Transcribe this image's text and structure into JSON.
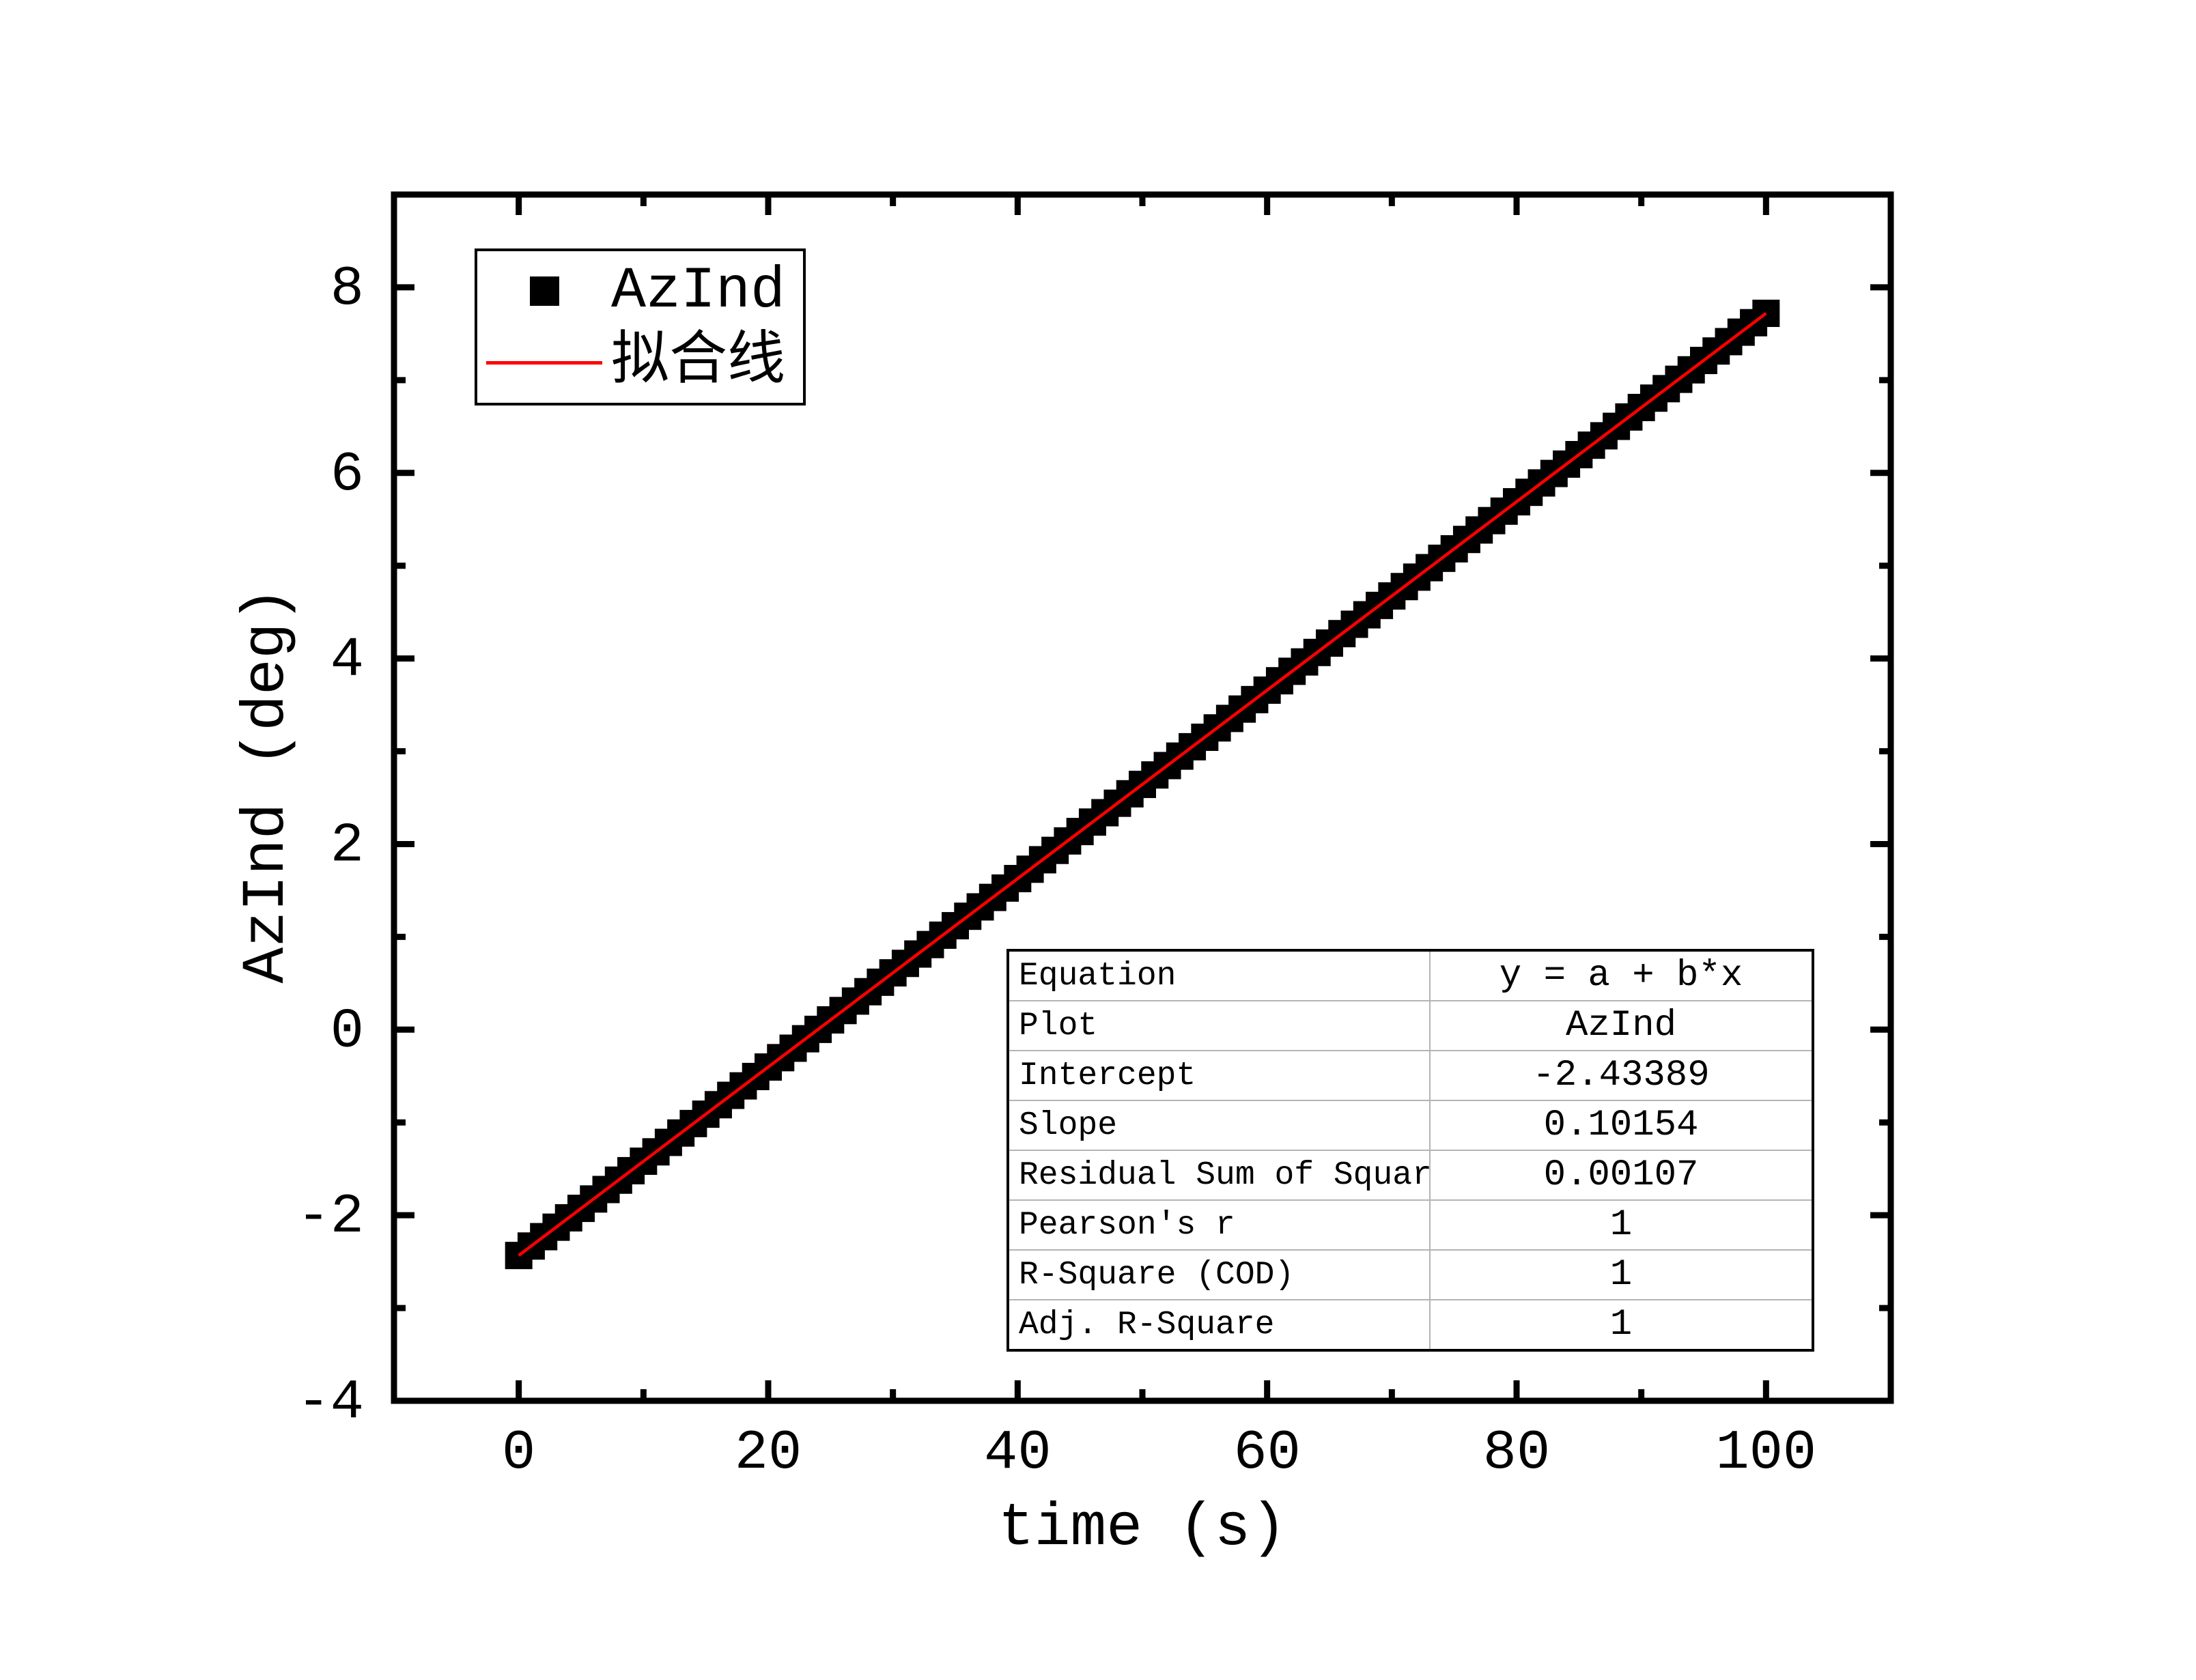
{
  "axis_titles": {
    "x": "time (s)",
    "y": "AzInd (deg)"
  },
  "legend": {
    "entries": [
      {
        "label": "AzInd",
        "symbol": "black-square-marker",
        "color": "#000000"
      },
      {
        "label": "拟合线",
        "symbol": "red-line",
        "color": "#ff0000"
      }
    ]
  },
  "stats_table": {
    "rows": [
      {
        "label": "Equation",
        "value": "y = a + b*x"
      },
      {
        "label": "Plot",
        "value": "AzInd"
      },
      {
        "label": "Intercept",
        "value": "-2.43389"
      },
      {
        "label": "Slope",
        "value": "0.10154"
      },
      {
        "label": "Residual Sum of Squar",
        "value": "0.00107"
      },
      {
        "label": "Pearson's r",
        "value": "1"
      },
      {
        "label": "R-Square (COD)",
        "value": "1"
      },
      {
        "label": "Adj. R-Square",
        "value": "1"
      }
    ]
  },
  "chart_data": {
    "type": "scatter",
    "title": "",
    "xlabel": "time (s)",
    "ylabel": "AzInd (deg)",
    "xlim": [
      -10,
      110
    ],
    "ylim": [
      -4,
      9
    ],
    "grid": false,
    "legend_position": "top-left",
    "x_major_ticks": [
      0,
      20,
      40,
      60,
      80,
      100
    ],
    "x_minor_ticks": [
      10,
      30,
      50,
      70,
      90
    ],
    "y_major_ticks": [
      -4,
      -2,
      0,
      2,
      4,
      6,
      8
    ],
    "y_minor_ticks": [
      -3,
      -1,
      1,
      3,
      5,
      7
    ],
    "x_tick_labels": [
      "0",
      "20",
      "40",
      "60",
      "80",
      "100"
    ],
    "y_tick_labels": [
      "-4",
      "-2",
      "0",
      "2",
      "4",
      "6",
      "8"
    ],
    "series": [
      {
        "name": "AzInd",
        "type": "scatter",
        "marker": "square",
        "color": "#000000",
        "marker_size": 40,
        "x_start": 0,
        "x_step": 1,
        "y": [
          -2.434,
          -2.332,
          -2.231,
          -2.129,
          -2.028,
          -1.926,
          -1.825,
          -1.723,
          -1.622,
          -1.52,
          -1.418,
          -1.317,
          -1.215,
          -1.114,
          -1.012,
          -0.911,
          -0.809,
          -0.708,
          -0.606,
          -0.505,
          -0.403,
          -0.302,
          -0.2,
          -0.098,
          0.003,
          0.105,
          0.206,
          0.308,
          0.409,
          0.511,
          0.612,
          0.714,
          0.815,
          0.917,
          1.018,
          1.12,
          1.222,
          1.323,
          1.425,
          1.526,
          1.628,
          1.729,
          1.831,
          1.932,
          2.034,
          2.135,
          2.237,
          2.338,
          2.44,
          2.542,
          2.643,
          2.745,
          2.846,
          2.948,
          3.049,
          3.151,
          3.252,
          3.354,
          3.455,
          3.557,
          3.659,
          3.76,
          3.862,
          3.963,
          4.065,
          4.166,
          4.268,
          4.369,
          4.471,
          4.572,
          4.674,
          4.775,
          4.877,
          4.979,
          5.08,
          5.182,
          5.283,
          5.385,
          5.486,
          5.588,
          5.689,
          5.791,
          5.892,
          5.994,
          6.095,
          6.197,
          6.299,
          6.4,
          6.502,
          6.603,
          6.705,
          6.806,
          6.908,
          7.009,
          7.111,
          7.212,
          7.314,
          7.415,
          7.517,
          7.619,
          7.72
        ]
      },
      {
        "name": "拟合线",
        "type": "line",
        "color": "#ff0000",
        "line_width": 4.5,
        "x_range": [
          0,
          100
        ],
        "fit": {
          "equation": "y = a + b*x",
          "intercept": -2.43389,
          "slope": 0.10154,
          "residual_sum_of_squares": 0.00107,
          "pearsons_r": 1,
          "r_square_cod": 1,
          "adj_r_square": 1
        }
      }
    ]
  }
}
